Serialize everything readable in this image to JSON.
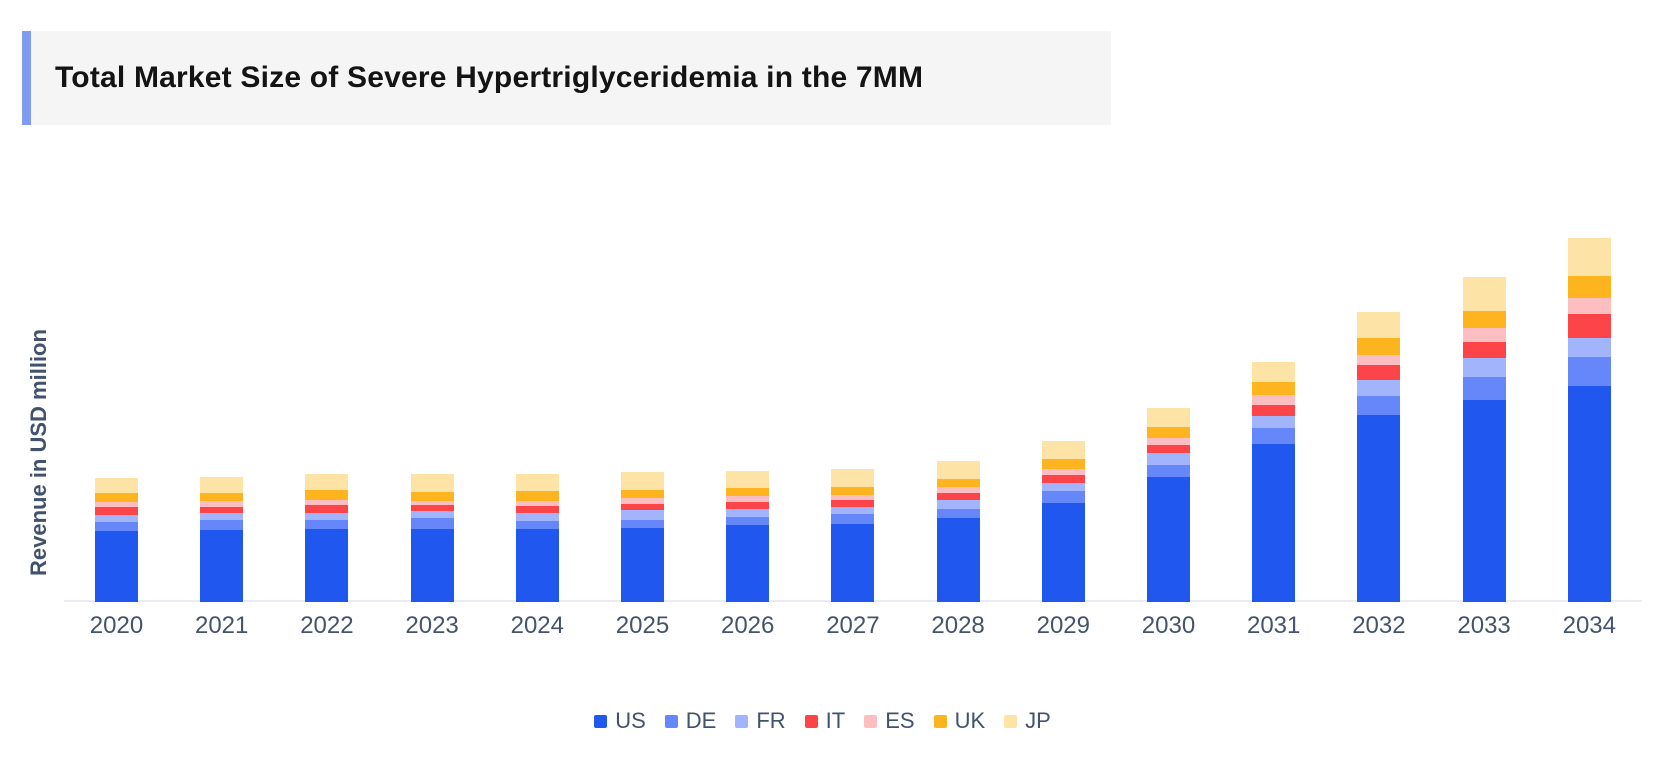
{
  "title": {
    "text": "Total Market Size of Severe Hypertriglyceridemia in the 7MM"
  },
  "accent_color": "#7f9cf0",
  "title_bg_color": "#f5f5f6",
  "axis_text_color": "#42526e",
  "chart_data": {
    "type": "bar",
    "stacked": true,
    "title": "Total Market Size of Severe Hypertriglyceridemia in the 7MM",
    "xlabel": "",
    "ylabel": "Revenue in USD million",
    "grid": false,
    "y_tick_labels_shown": false,
    "legend_position": "bottom",
    "ylim": [
      0,
      800
    ],
    "units": "USD million (estimated, no tick labels shown)",
    "categories": [
      "2020",
      "2021",
      "2022",
      "2023",
      "2024",
      "2025",
      "2026",
      "2027",
      "2028",
      "2029",
      "2030",
      "2031",
      "2032",
      "2033",
      "2034"
    ],
    "series": [
      {
        "name": "US",
        "color": "#2058ef",
        "values": [
          143,
          145,
          147,
          147,
          147,
          149,
          154,
          157,
          169,
          199,
          251,
          317,
          375,
          405,
          433
        ]
      },
      {
        "name": "DE",
        "color": "#6687f9",
        "values": [
          18,
          19,
          17,
          22,
          15,
          16,
          17,
          19,
          18,
          23,
          24,
          31,
          37,
          46,
          57
        ]
      },
      {
        "name": "FR",
        "color": "#a2b4fc",
        "values": [
          14,
          14,
          15,
          13,
          16,
          19,
          15,
          15,
          17,
          17,
          23,
          24,
          33,
          37,
          39
        ]
      },
      {
        "name": "IT",
        "color": "#fd4449",
        "values": [
          15,
          13,
          15,
          12,
          15,
          13,
          15,
          13,
          15,
          15,
          17,
          23,
          29,
          33,
          48
        ]
      },
      {
        "name": "ES",
        "color": "#fdbec2",
        "values": [
          10,
          11,
          11,
          9,
          10,
          11,
          12,
          11,
          11,
          13,
          13,
          20,
          21,
          27,
          31
        ]
      },
      {
        "name": "UK",
        "color": "#fdb41e",
        "values": [
          18,
          17,
          19,
          18,
          19,
          17,
          16,
          15,
          17,
          19,
          22,
          25,
          33,
          35,
          44
        ]
      },
      {
        "name": "JP",
        "color": "#fee3a6",
        "values": [
          31,
          32,
          32,
          35,
          35,
          36,
          33,
          36,
          36,
          36,
          38,
          40,
          52,
          68,
          76
        ]
      }
    ],
    "totals": [
      249,
      251,
      256,
      256,
      257,
      261,
      262,
      266,
      283,
      322,
      388,
      480,
      580,
      651,
      728
    ]
  }
}
